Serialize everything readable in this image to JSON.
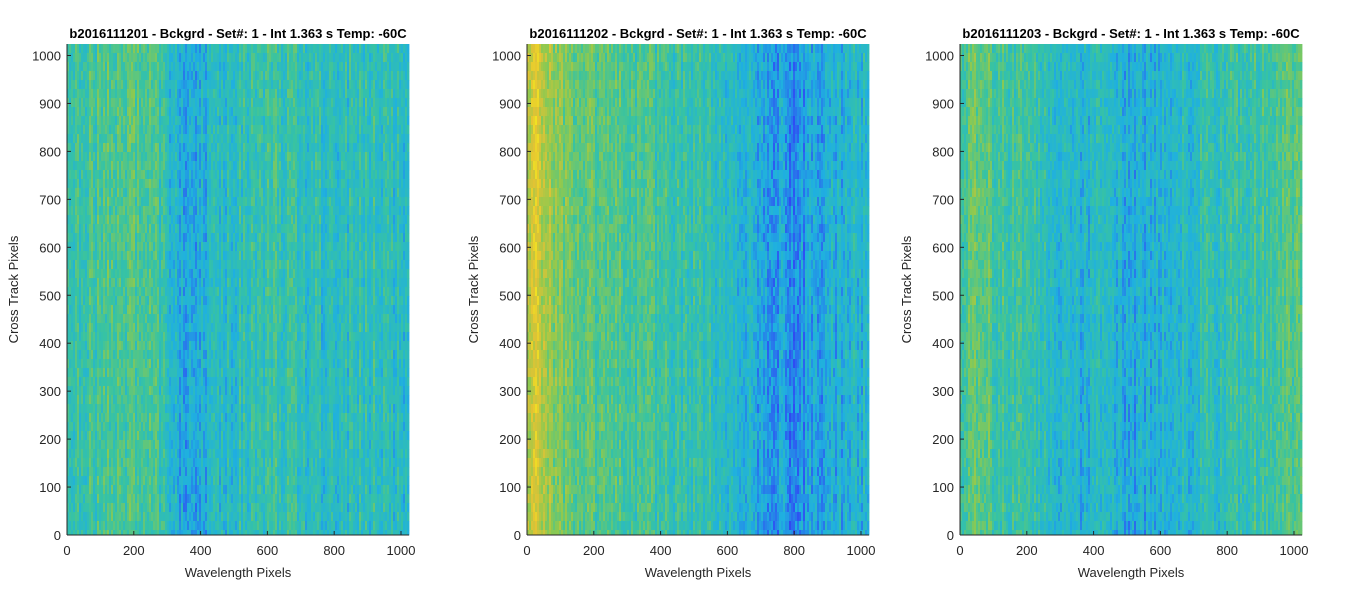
{
  "chart_data": [
    {
      "type": "heatmap",
      "title": "b2016111201 - Bckgrd - Set#: 1 - Int 1.363 s Temp: -60C",
      "xlabel": "Wavelength Pixels",
      "ylabel": "Cross Track Pixels",
      "xlim": [
        0,
        1024
      ],
      "ylim": [
        0,
        1024
      ],
      "xticks": [
        0,
        200,
        400,
        600,
        800,
        1000
      ],
      "yticks": [
        0,
        100,
        200,
        300,
        400,
        500,
        600,
        700,
        800,
        900,
        1000
      ],
      "column_profile": {
        "x": [
          0,
          60,
          120,
          200,
          260,
          320,
          380,
          440,
          520,
          600,
          680,
          760,
          840,
          920,
          1000,
          1024
        ],
        "values": [
          0.48,
          0.52,
          0.54,
          0.55,
          0.52,
          0.38,
          0.36,
          0.42,
          0.46,
          0.5,
          0.47,
          0.44,
          0.45,
          0.47,
          0.45,
          0.44
        ]
      }
    },
    {
      "type": "heatmap",
      "title": "b2016111202 - Bckgrd - Set#: 1 - Int 1.363 s Temp: -60C",
      "xlabel": "Wavelength Pixels",
      "ylabel": "Cross Track Pixels",
      "xlim": [
        0,
        1024
      ],
      "ylim": [
        0,
        1024
      ],
      "xticks": [
        0,
        200,
        400,
        600,
        800,
        1000
      ],
      "yticks": [
        0,
        100,
        200,
        300,
        400,
        500,
        600,
        700,
        800,
        900,
        1000
      ],
      "column_profile": {
        "x": [
          0,
          30,
          60,
          100,
          160,
          220,
          300,
          400,
          500,
          600,
          680,
          740,
          800,
          860,
          940,
          1024
        ],
        "values": [
          0.8,
          0.82,
          0.72,
          0.64,
          0.58,
          0.56,
          0.54,
          0.5,
          0.48,
          0.45,
          0.38,
          0.32,
          0.3,
          0.34,
          0.38,
          0.4
        ]
      }
    },
    {
      "type": "heatmap",
      "title": "b2016111203 - Bckgrd - Set#: 1 - Int 1.363 s Temp: -60C",
      "xlabel": "Wavelength Pixels",
      "ylabel": "Cross Track Pixels",
      "xlim": [
        0,
        1024
      ],
      "ylim": [
        0,
        1024
      ],
      "xticks": [
        0,
        200,
        400,
        600,
        800,
        1000
      ],
      "yticks": [
        0,
        100,
        200,
        300,
        400,
        500,
        600,
        700,
        800,
        900,
        1000
      ],
      "column_profile": {
        "x": [
          0,
          40,
          80,
          150,
          220,
          300,
          400,
          480,
          550,
          620,
          700,
          780,
          860,
          920,
          980,
          1024
        ],
        "values": [
          0.55,
          0.58,
          0.56,
          0.5,
          0.46,
          0.42,
          0.4,
          0.38,
          0.36,
          0.4,
          0.44,
          0.46,
          0.5,
          0.54,
          0.58,
          0.56
        ]
      }
    }
  ],
  "colors": {
    "colormap": [
      "#3e26a8",
      "#2f4df4",
      "#1fb0e0",
      "#37c3a3",
      "#8dc950",
      "#e4c333",
      "#f9fb15"
    ],
    "axis": "#262626",
    "tick_text": "#262626",
    "title_text": "#000000"
  }
}
